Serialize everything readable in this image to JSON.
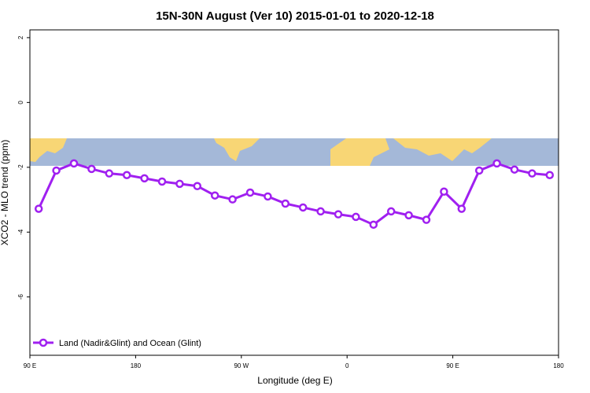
{
  "chart_data": {
    "type": "line",
    "title": "15N-30N August (Ver 10)   2015-01-01 to 2020-12-18",
    "x_label": "Longitude (deg E)",
    "y_label": "XCO2 - MLO trend (ppm)",
    "x": [
      97.5,
      112.5,
      127.5,
      142.5,
      157.5,
      172.5,
      187.5,
      202.5,
      217.5,
      232.5,
      247.5,
      262.5,
      277.5,
      292.5,
      307.5,
      322.5,
      337.5,
      352.5,
      367.5,
      382.5,
      397.5,
      412.5,
      427.5,
      442.5,
      457.5,
      472.5,
      487.5,
      502.5,
      517.5,
      532.5
    ],
    "series": [
      {
        "name": "Land (Nadir&Glint) and Ocean (Glint)",
        "color": "#a020f0",
        "values": [
          -3.28,
          -2.1,
          -1.88,
          -2.05,
          -2.19,
          -2.24,
          -2.34,
          -2.44,
          -2.51,
          -2.58,
          -2.87,
          -2.99,
          -2.78,
          -2.9,
          -3.12,
          -3.24,
          -3.36,
          -3.45,
          -3.53,
          -3.77,
          -3.36,
          -3.48,
          -3.62,
          -2.75,
          -3.28,
          -2.1,
          -1.88,
          -2.07,
          -2.19,
          -2.24
        ]
      }
    ],
    "xlim": [
      90,
      540
    ],
    "xticks": [
      {
        "value": 90,
        "label": "90 E"
      },
      180,
      {
        "value": 270,
        "label": "90 W"
      },
      {
        "value": 360,
        "label": "0"
      },
      {
        "value": 450,
        "label": "90 E"
      },
      {
        "value": 540,
        "label": "180"
      }
    ],
    "ylim": [
      -7.8,
      2.24
    ],
    "yticks": [
      2,
      0,
      -2,
      -4,
      -6
    ],
    "legend": "bottom-left"
  }
}
